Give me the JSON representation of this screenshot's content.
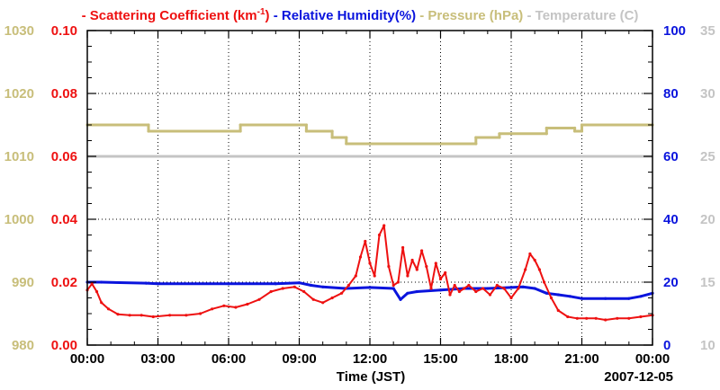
{
  "colors": {
    "scattering": "#ee1111",
    "humidity": "#0a14dd",
    "pressure": "#c8be7a",
    "temperature": "#c4c4c4",
    "axis": "#000000",
    "grid": "#000000"
  },
  "legend": {
    "scattering": {
      "prefix": "- ",
      "label": "Scattering Coefficient (km",
      "sup": "-1",
      "suffix": ")"
    },
    "humidity": {
      "prefix": " - ",
      "label": "Relative Humidity(%)"
    },
    "pressure": {
      "prefix": " - ",
      "label": "Pressure (hPa)"
    },
    "temperature": {
      "prefix": " - ",
      "label": "Temperature (C)"
    }
  },
  "chart_data": {
    "type": "line",
    "xlabel": "Time (JST)",
    "date_label": "2007-12-05",
    "x_ticks": [
      "00:00",
      "03:00",
      "06:00",
      "09:00",
      "12:00",
      "15:00",
      "18:00",
      "21:00",
      "00:00"
    ],
    "x_range_hours": [
      0,
      24
    ],
    "axes": {
      "pressure": {
        "ticks": [
          "980",
          "990",
          "1000",
          "1010",
          "1020",
          "1030"
        ],
        "range": [
          980,
          1030
        ]
      },
      "scattering": {
        "ticks": [
          "0.00",
          "0.02",
          "0.04",
          "0.06",
          "0.08",
          "0.10"
        ],
        "range": [
          0,
          0.1
        ]
      },
      "humidity": {
        "ticks": [
          "0",
          "20",
          "40",
          "60",
          "80",
          "100"
        ],
        "range": [
          0,
          100
        ]
      },
      "temperature": {
        "ticks": [
          "10",
          "15",
          "20",
          "25",
          "30",
          "35"
        ],
        "range": [
          10,
          35
        ]
      }
    },
    "series": [
      {
        "name": "Scattering Coefficient",
        "unit": "km-1",
        "axis": "scattering",
        "hours": [
          0,
          0.2,
          0.4,
          0.6,
          0.9,
          1.3,
          1.8,
          2.3,
          2.8,
          3.5,
          4.2,
          4.8,
          5.3,
          5.8,
          6.3,
          6.8,
          7.3,
          7.8,
          8.3,
          8.8,
          9.2,
          9.6,
          10.0,
          10.4,
          10.8,
          11.1,
          11.4,
          11.6,
          11.8,
          12.0,
          12.2,
          12.4,
          12.6,
          12.8,
          13.0,
          13.2,
          13.4,
          13.6,
          13.8,
          14.0,
          14.2,
          14.4,
          14.6,
          14.8,
          15.0,
          15.2,
          15.4,
          15.6,
          15.8,
          16.0,
          16.2,
          16.5,
          16.8,
          17.1,
          17.4,
          17.7,
          18.0,
          18.3,
          18.6,
          18.8,
          19.0,
          19.2,
          19.4,
          19.7,
          20.0,
          20.4,
          20.8,
          21.2,
          21.6,
          22.0,
          22.5,
          23.0,
          23.5,
          24.0
        ],
        "values": [
          0.0175,
          0.0195,
          0.017,
          0.0135,
          0.0115,
          0.0098,
          0.0095,
          0.0095,
          0.009,
          0.0095,
          0.0095,
          0.01,
          0.0115,
          0.0125,
          0.012,
          0.013,
          0.0145,
          0.017,
          0.018,
          0.0185,
          0.017,
          0.0145,
          0.0135,
          0.015,
          0.0165,
          0.019,
          0.022,
          0.028,
          0.033,
          0.026,
          0.022,
          0.035,
          0.038,
          0.025,
          0.019,
          0.02,
          0.031,
          0.022,
          0.027,
          0.024,
          0.03,
          0.025,
          0.018,
          0.026,
          0.021,
          0.023,
          0.016,
          0.019,
          0.017,
          0.018,
          0.019,
          0.017,
          0.018,
          0.016,
          0.019,
          0.018,
          0.015,
          0.018,
          0.024,
          0.029,
          0.027,
          0.024,
          0.02,
          0.015,
          0.011,
          0.009,
          0.0085,
          0.0085,
          0.0085,
          0.008,
          0.0085,
          0.0085,
          0.009,
          0.0095
        ]
      },
      {
        "name": "Relative Humidity",
        "unit": "%",
        "axis": "humidity",
        "hours": [
          0,
          0.3,
          0.6,
          2.5,
          3.0,
          6.0,
          8.0,
          9.0,
          9.5,
          10.0,
          11.0,
          12.0,
          13.0,
          13.3,
          13.6,
          14.0,
          15.0,
          16.0,
          17.0,
          18.0,
          18.5,
          19.0,
          19.5,
          20.0,
          20.5,
          21.0,
          22.0,
          23.0,
          23.5,
          24.0
        ],
        "values": [
          20,
          20,
          20,
          19.7,
          19.5,
          19.5,
          19.5,
          19.8,
          19,
          18.5,
          18,
          18.3,
          18,
          14.5,
          16.5,
          17,
          17.5,
          18,
          18,
          18.3,
          18.5,
          18,
          16.5,
          16,
          15.5,
          14.8,
          14.8,
          14.8,
          15.5,
          16.5
        ]
      },
      {
        "name": "Pressure",
        "unit": "hPa",
        "axis": "pressure",
        "hours": [
          0,
          2.6,
          2.6,
          6.5,
          6.5,
          9.3,
          9.3,
          10.4,
          10.4,
          11.0,
          11.0,
          16.5,
          16.5,
          17.5,
          17.5,
          19.5,
          19.5,
          20.7,
          20.7,
          21.0,
          21.0,
          24.0
        ],
        "values": [
          1015,
          1015,
          1014,
          1014,
          1015,
          1015,
          1014,
          1014,
          1013,
          1013,
          1012,
          1012,
          1013,
          1013,
          1013.6,
          1013.6,
          1014.5,
          1014.5,
          1014,
          1014,
          1015,
          1015
        ]
      },
      {
        "name": "Temperature",
        "unit": "C",
        "axis": "temperature",
        "hours": [
          0,
          24
        ],
        "values": [
          25,
          25
        ]
      }
    ]
  }
}
